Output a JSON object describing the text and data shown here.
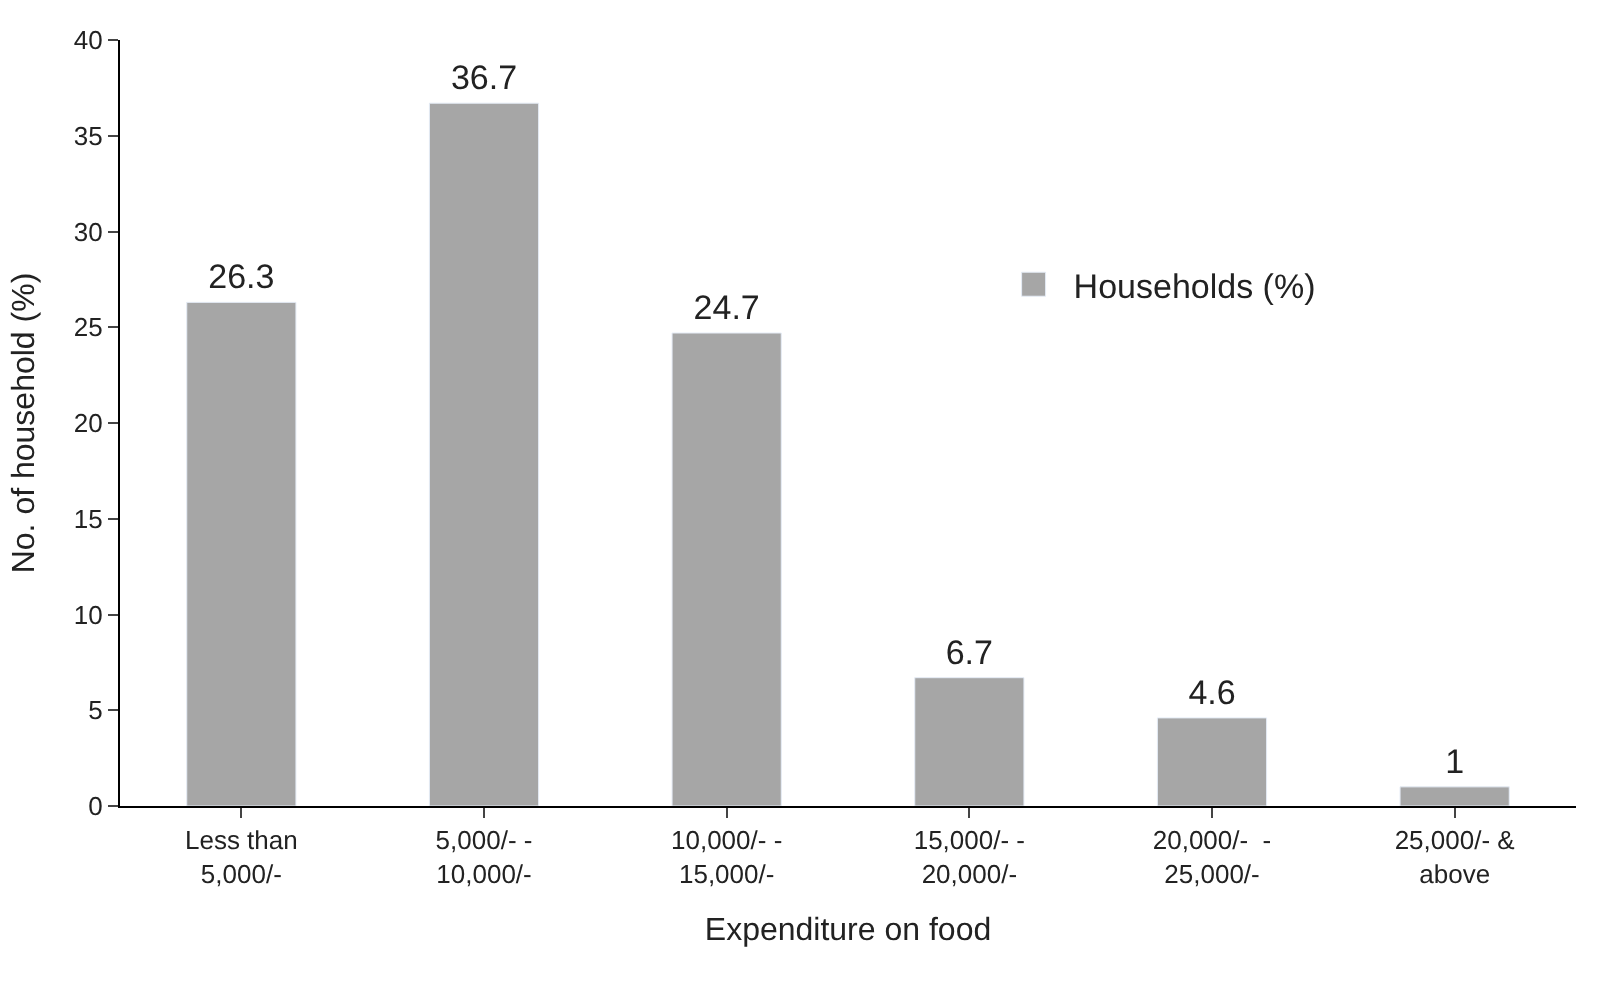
{
  "chart_data": {
    "type": "bar",
    "xlabel": "Expenditure on food",
    "ylabel": "No. of household (%)",
    "categories": [
      "Less than\n5,000/-",
      "5,000/- -\n10,000/-",
      "10,000/- -\n15,000/-",
      "15,000/- -\n20,000/-",
      "20,000/-  -\n25,000/-",
      "25,000/- &\nabove"
    ],
    "series": [
      {
        "name": "Households (%)",
        "color": "#a6a6a6",
        "values": [
          26.3,
          36.7,
          24.7,
          6.7,
          4.6,
          1
        ]
      }
    ],
    "ylim": [
      0,
      40
    ],
    "yticks": [
      0,
      5,
      10,
      15,
      20,
      25,
      30,
      35,
      40
    ],
    "data_labels": true,
    "legend": "right"
  }
}
